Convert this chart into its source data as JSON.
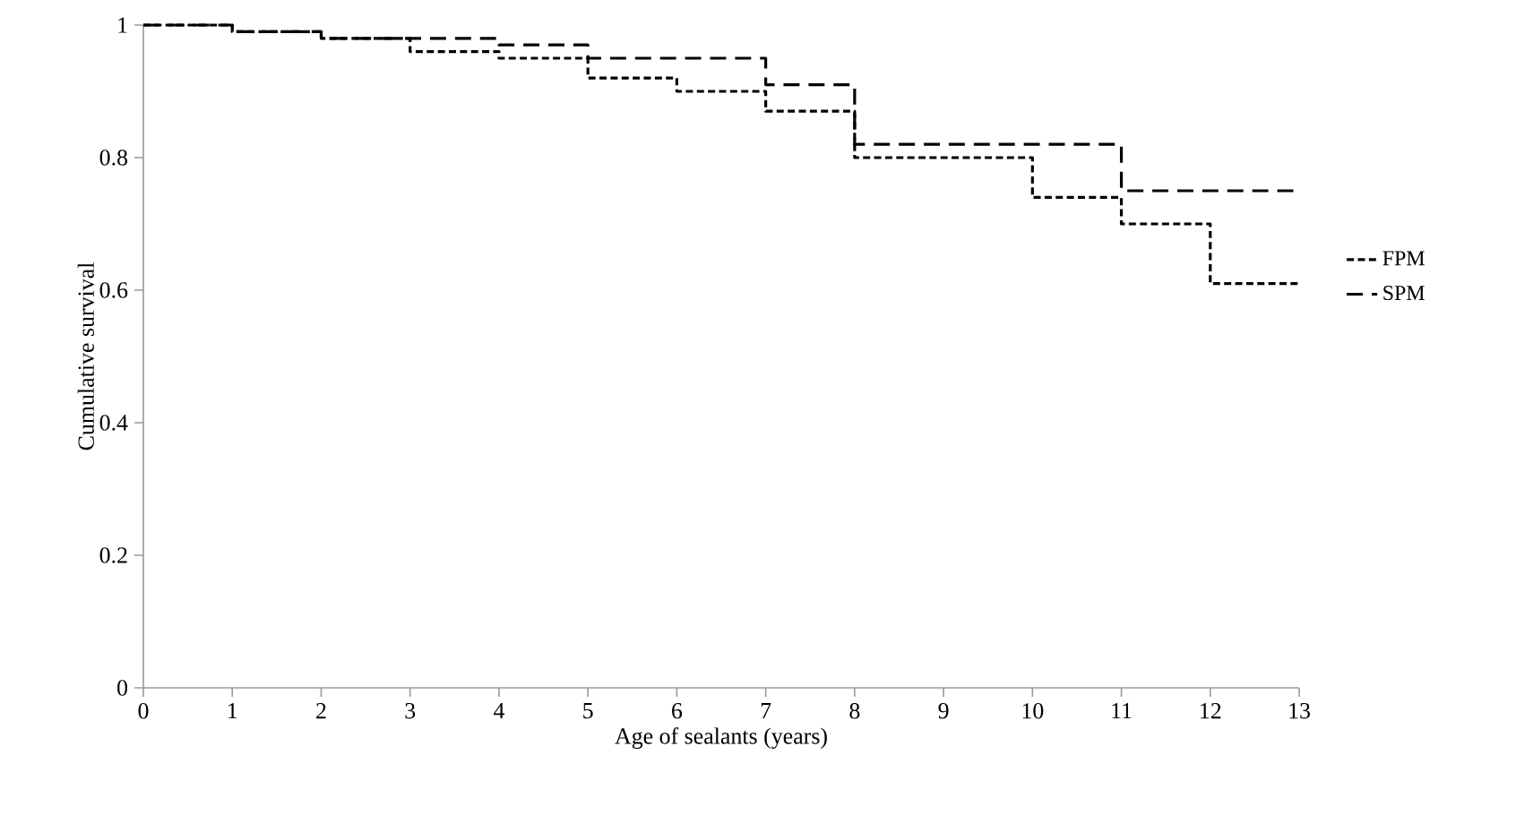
{
  "chart_data": {
    "type": "step",
    "xlabel": "Age of sealants (years)",
    "ylabel": "Cumulative survival",
    "x": [
      0,
      1,
      2,
      3,
      4,
      5,
      6,
      7,
      8,
      9,
      10,
      11,
      12,
      13
    ],
    "series": [
      {
        "name": "FPM",
        "color": "#000000",
        "line_style": "dotted",
        "values": [
          1,
          0.99,
          0.98,
          0.96,
          0.95,
          0.92,
          0.9,
          0.87,
          0.8,
          0.8,
          0.74,
          0.7,
          0.61,
          0.61
        ]
      },
      {
        "name": "SPM",
        "color": "#000000",
        "line_style": "dashed",
        "values": [
          1,
          0.99,
          0.98,
          0.98,
          0.97,
          0.95,
          0.95,
          0.91,
          0.82,
          0.82,
          0.82,
          0.75,
          0.75,
          0.75
        ]
      }
    ],
    "xlim": [
      0,
      13
    ],
    "ylim": [
      0,
      1
    ],
    "xticks": [
      0,
      1,
      2,
      3,
      4,
      5,
      6,
      7,
      8,
      9,
      10,
      11,
      12,
      13
    ],
    "yticks": [
      0,
      0.2,
      0.4,
      0.6,
      0.8,
      1
    ],
    "grid": false,
    "legend": "right",
    "marker": "none"
  }
}
